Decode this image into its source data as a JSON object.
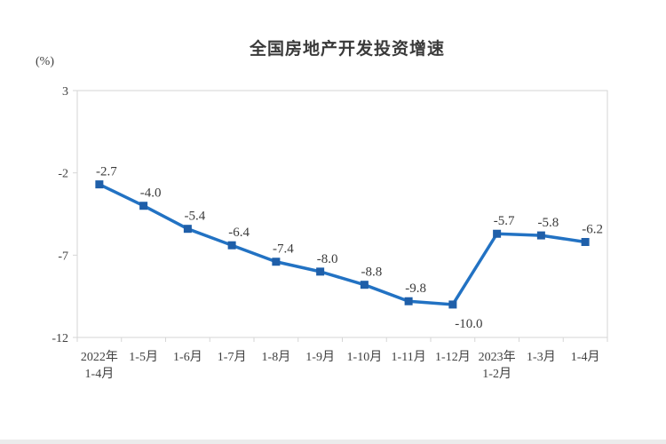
{
  "page": {
    "background": "#ffffff"
  },
  "chart_data": {
    "type": "line",
    "title": "全国房地产开发投资增速",
    "unit_label": "(%)",
    "categories": [
      "2022年\n1-4月",
      "1-5月",
      "1-6月",
      "1-7月",
      "1-8月",
      "1-9月",
      "1-10月",
      "1-11月",
      "1-12月",
      "2023年\n1-2月",
      "1-3月",
      "1-4月"
    ],
    "series": [
      {
        "name": "全国房地产开发投资增速",
        "values": [
          -2.7,
          -4.0,
          -5.4,
          -6.4,
          -7.4,
          -8.0,
          -8.8,
          -9.8,
          -10.0,
          -5.7,
          -5.8,
          -6.2
        ]
      }
    ],
    "data_labels": [
      "-2.7",
      "-4.0",
      "-5.4",
      "-6.4",
      "-7.4",
      "-8.0",
      "-8.8",
      "-9.8",
      "-10.0",
      "-5.7",
      "-5.8",
      "-6.2"
    ],
    "below_label_indices": [
      8
    ],
    "yticks": [
      3,
      -2,
      -7,
      -12
    ],
    "ylim": [
      -12,
      3
    ],
    "grid": "none",
    "legend": "none",
    "marker": "square",
    "line_color": "#2272c3",
    "marker_color": "#1f5fa9",
    "axis_color": "#d6d6d6",
    "text_color": "#404040"
  }
}
